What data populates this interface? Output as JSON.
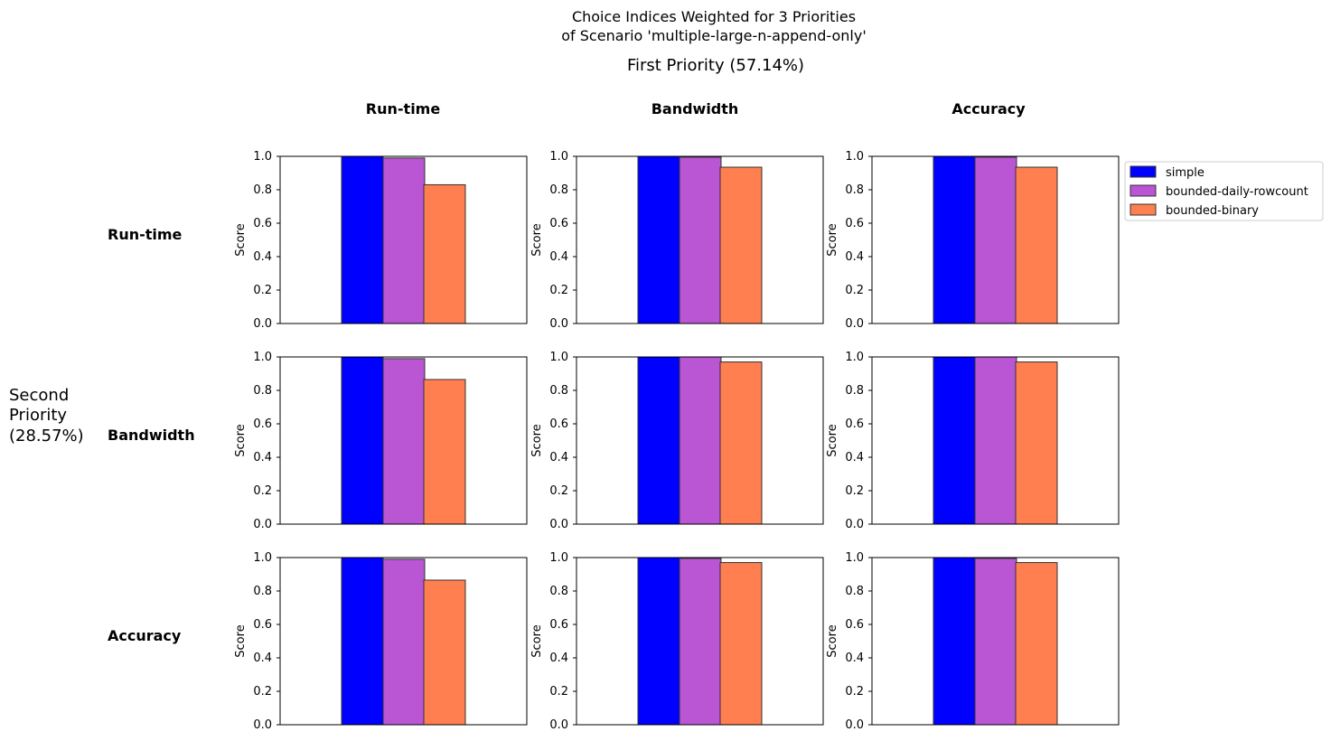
{
  "figure": {
    "title_line1": "Choice Indices Weighted for 3 Priorities",
    "title_line2": "of Scenario 'multiple-large-n-append-only'",
    "first_priority_label": "First Priority (57.14%)",
    "second_priority_label": [
      "Second",
      "Priority",
      "(28.57%)"
    ]
  },
  "columns": [
    "Run-time",
    "Bandwidth",
    "Accuracy"
  ],
  "rows": [
    "Run-time",
    "Bandwidth",
    "Accuracy"
  ],
  "legend": {
    "placement": "right of top-right panel",
    "entries": [
      {
        "name": "simple",
        "color": "#0000ff"
      },
      {
        "name": "bounded-daily-rowcount",
        "color": "#ba55d3"
      },
      {
        "name": "bounded-binary",
        "color": "#ff7f50"
      }
    ]
  },
  "colors": {
    "simple": "#0000ff",
    "bounded-daily-rowcount": "#ba55d3",
    "bounded-binary": "#ff7f50"
  },
  "chart_data": {
    "type": "bar",
    "layout": "3x3 grid of bar charts (row = second priority, column = first priority)",
    "ylabel": "Score",
    "ylim": [
      0,
      1.0
    ],
    "yticks": [
      "0.0",
      "0.2",
      "0.4",
      "0.6",
      "0.8",
      "1.0"
    ],
    "series_names": [
      "simple",
      "bounded-daily-rowcount",
      "bounded-binary"
    ],
    "panels": [
      {
        "row": "Run-time",
        "column": "Run-time",
        "values": [
          1.0,
          0.99,
          0.83
        ]
      },
      {
        "row": "Run-time",
        "column": "Bandwidth",
        "values": [
          1.0,
          0.995,
          0.935
        ]
      },
      {
        "row": "Run-time",
        "column": "Accuracy",
        "values": [
          1.0,
          0.995,
          0.935
        ]
      },
      {
        "row": "Bandwidth",
        "column": "Run-time",
        "values": [
          1.0,
          0.99,
          0.865
        ]
      },
      {
        "row": "Bandwidth",
        "column": "Bandwidth",
        "values": [
          1.0,
          1.0,
          0.97
        ]
      },
      {
        "row": "Bandwidth",
        "column": "Accuracy",
        "values": [
          1.0,
          1.0,
          0.97
        ]
      },
      {
        "row": "Accuracy",
        "column": "Run-time",
        "values": [
          1.0,
          0.99,
          0.865
        ]
      },
      {
        "row": "Accuracy",
        "column": "Bandwidth",
        "values": [
          1.0,
          0.995,
          0.97
        ]
      },
      {
        "row": "Accuracy",
        "column": "Accuracy",
        "values": [
          1.0,
          0.995,
          0.97
        ]
      }
    ]
  }
}
